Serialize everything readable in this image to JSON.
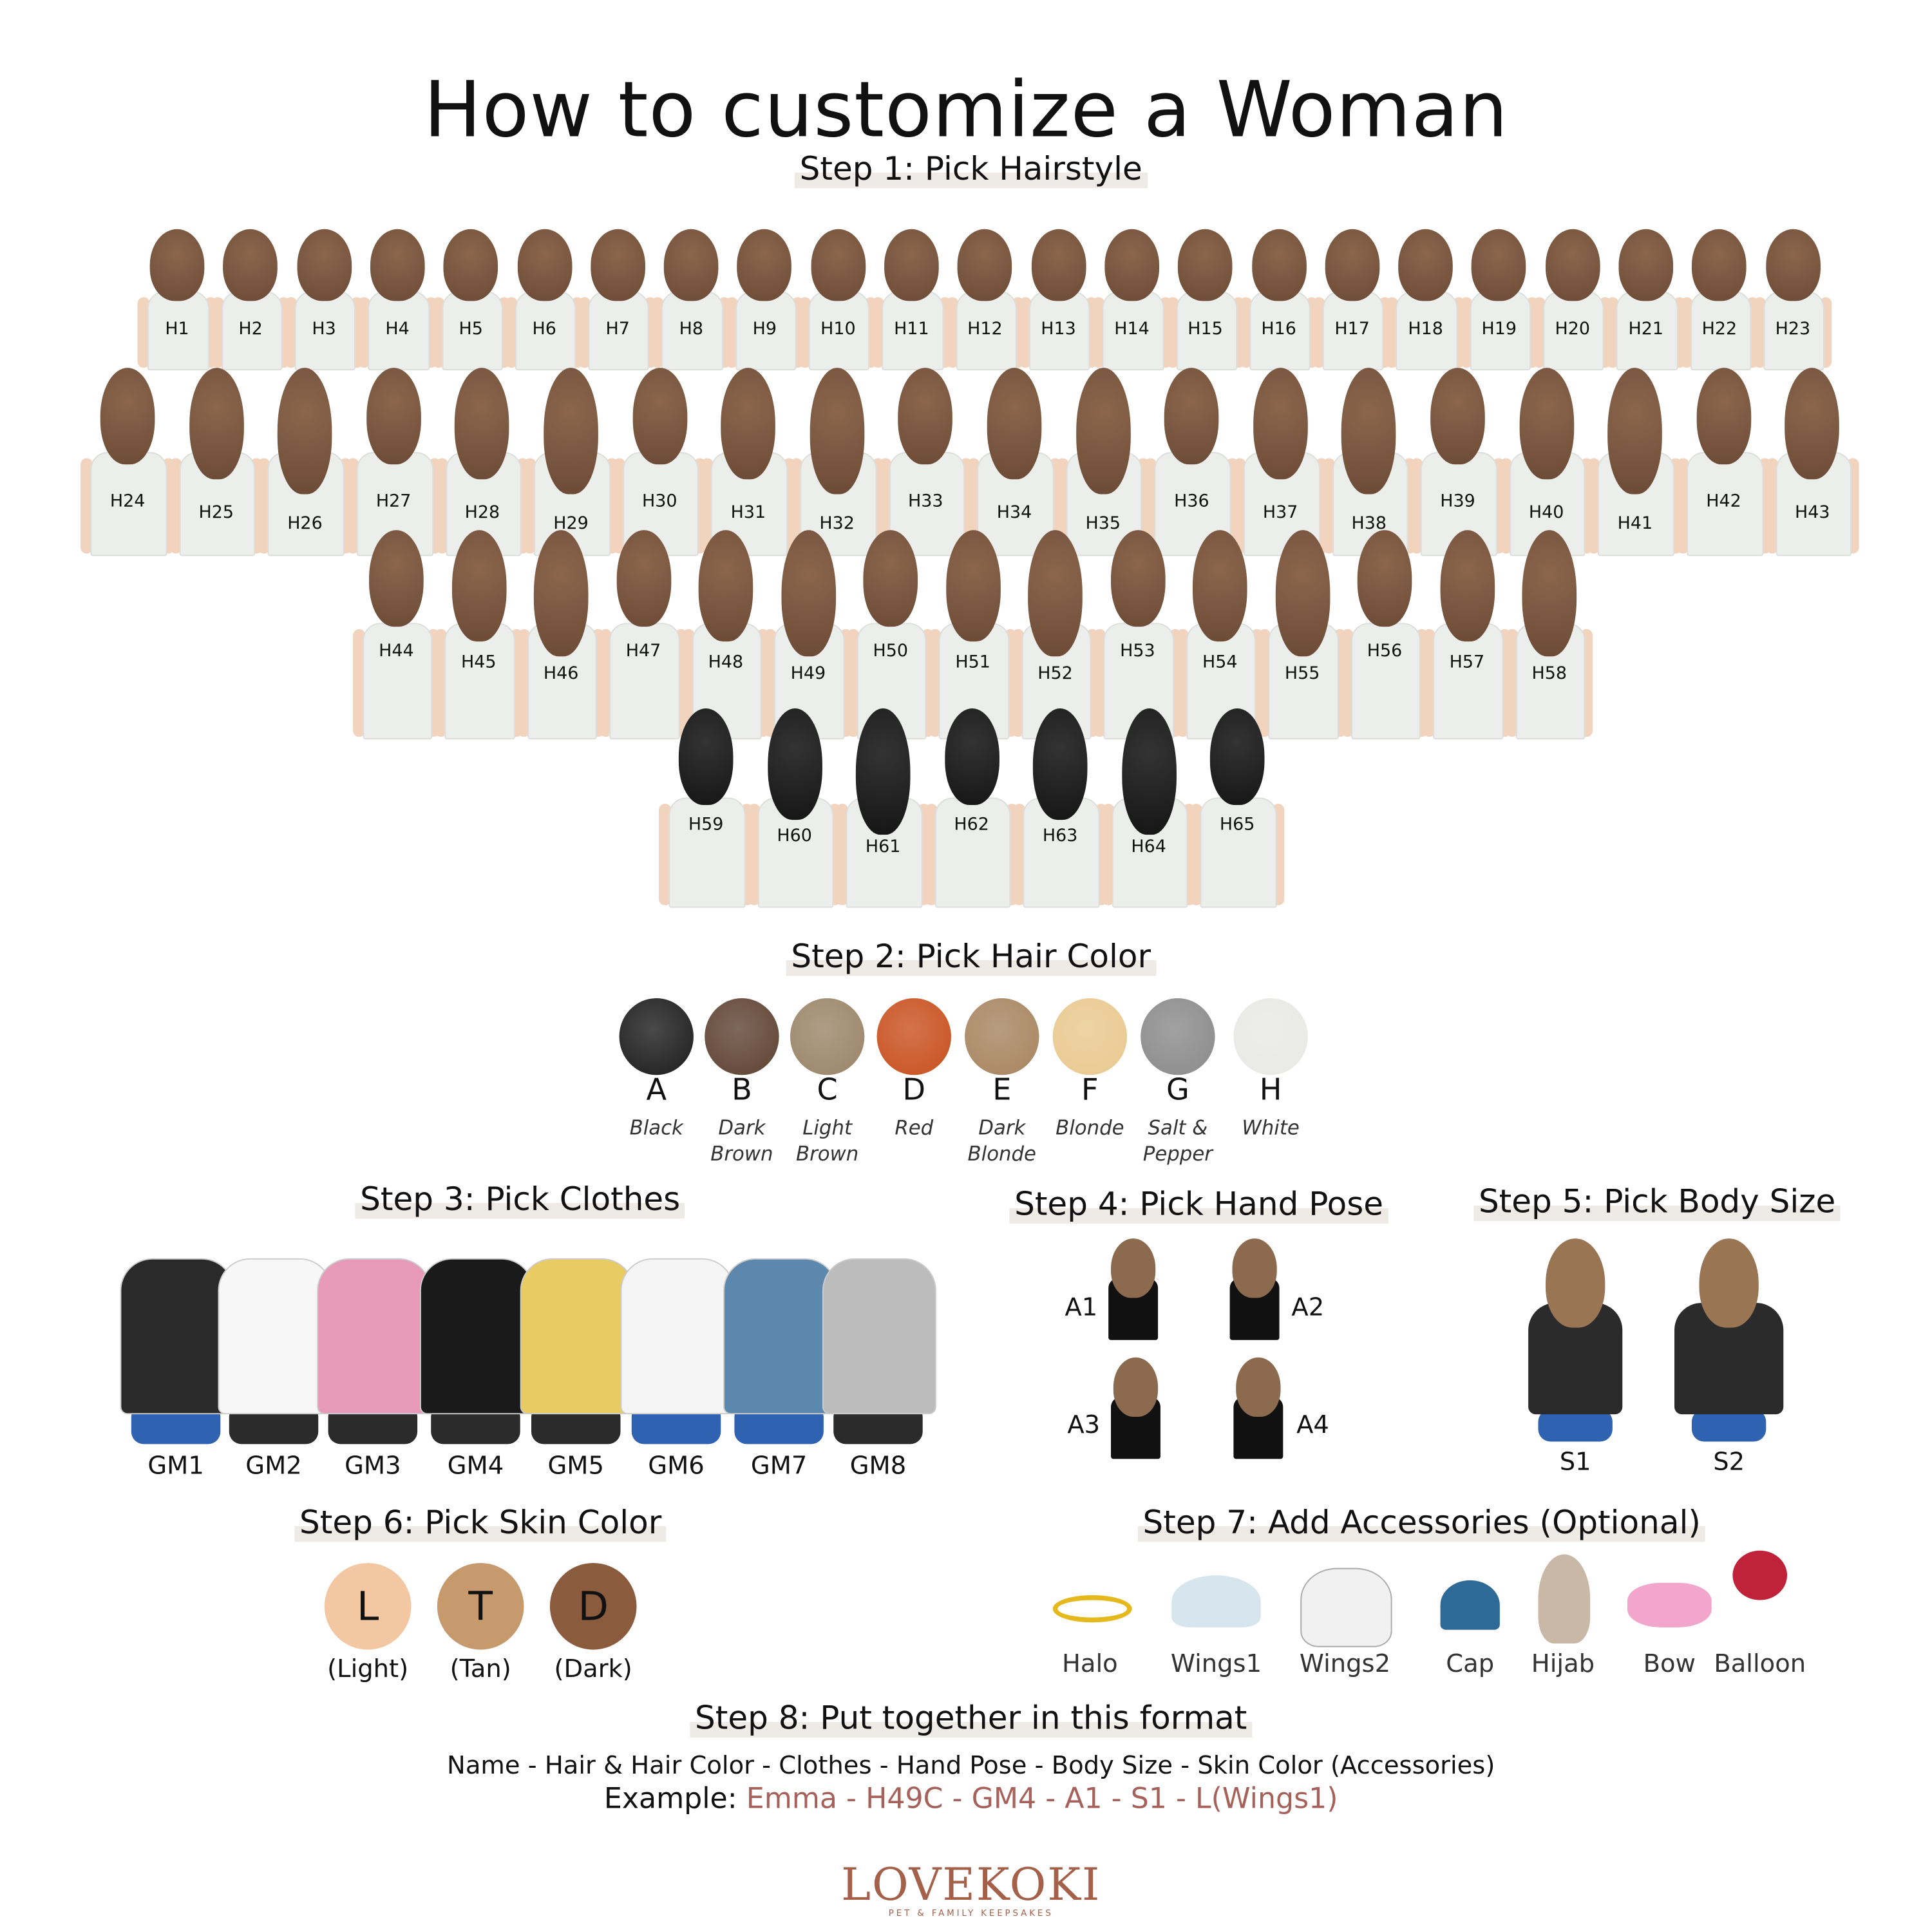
{
  "title": "How to customize a Woman",
  "steps": {
    "s1": "Step 1: Pick Hairstyle",
    "s2": "Step 2: Pick Hair Color",
    "s3": "Step 3: Pick Clothes",
    "s4": "Step 4: Pick Hand Pose",
    "s5": "Step 5: Pick Body Size",
    "s6": "Step 6: Pick Skin Color",
    "s7": "Step 7: Add Accessories (Optional)",
    "s8": "Step 8: Put together in this format"
  },
  "hairstyles": [
    "H1",
    "H2",
    "H3",
    "H4",
    "H5",
    "H6",
    "H7",
    "H8",
    "H9",
    "H10",
    "H11",
    "H12",
    "H13",
    "H14",
    "H15",
    "H16",
    "H17",
    "H18",
    "H19",
    "H20",
    "H21",
    "H22",
    "H23",
    "H24",
    "H25",
    "H26",
    "H27",
    "H28",
    "H29",
    "H30",
    "H31",
    "H32",
    "H33",
    "H34",
    "H35",
    "H36",
    "H37",
    "H38",
    "H39",
    "H40",
    "H41",
    "H42",
    "H43",
    "H44",
    "H45",
    "H46",
    "H47",
    "H48",
    "H49",
    "H50",
    "H51",
    "H52",
    "H53",
    "H54",
    "H55",
    "H56",
    "H57",
    "H58",
    "H59",
    "H60",
    "H61",
    "H62",
    "H63",
    "H64",
    "H65"
  ],
  "hair_colors": [
    {
      "code": "A",
      "name": "Black",
      "color": "#1c1c1c"
    },
    {
      "code": "B",
      "name": "Dark Brown",
      "color": "#5e4232"
    },
    {
      "code": "C",
      "name": "Light Brown",
      "color": "#9a8467"
    },
    {
      "code": "D",
      "name": "Red",
      "color": "#c8501e"
    },
    {
      "code": "E",
      "name": "Dark Blonde",
      "color": "#a7845f"
    },
    {
      "code": "F",
      "name": "Blonde",
      "color": "#e9c88e"
    },
    {
      "code": "G",
      "name": "Salt & Pepper",
      "color": "#8a8a8a"
    },
    {
      "code": "H",
      "name": "White",
      "color": "#e8e8e4"
    }
  ],
  "clothes": [
    {
      "code": "GM1",
      "color": "#2a2a2a"
    },
    {
      "code": "GM2",
      "color": "#f7f7f7"
    },
    {
      "code": "GM3",
      "color": "#e79ab8"
    },
    {
      "code": "GM4",
      "color": "#1a1a1a"
    },
    {
      "code": "GM5",
      "color": "#e8cb62"
    },
    {
      "code": "GM6",
      "color": "#f5f5f5"
    },
    {
      "code": "GM7",
      "color": "#5d88ad"
    },
    {
      "code": "GM8",
      "color": "#bcbcbc"
    }
  ],
  "hand_poses": [
    "A1",
    "A2",
    "A3",
    "A4"
  ],
  "body_sizes": [
    "S1",
    "S2"
  ],
  "skin_colors": [
    {
      "code": "L",
      "name": "(Light)",
      "color": "#f3c7a2"
    },
    {
      "code": "T",
      "name": "(Tan)",
      "color": "#c69a6c"
    },
    {
      "code": "D",
      "name": "(Dark)",
      "color": "#8a5b3c"
    }
  ],
  "accessories": [
    "Halo",
    "Wings1",
    "Wings2",
    "Cap",
    "Hijab",
    "Bow",
    "Balloon"
  ],
  "format": "Name - Hair & Hair Color - Clothes - Hand Pose - Body Size - Skin Color (Accessories)",
  "example_label": "Example:",
  "example_value": "Emma - H49C - GM4 - A1 - S1 - L(Wings1)",
  "accent_color": "#a6625a",
  "logo": {
    "name": "LOVEKOKI",
    "tagline": "PET & FAMILY KEEPSAKES",
    "color": "#a5604a"
  }
}
